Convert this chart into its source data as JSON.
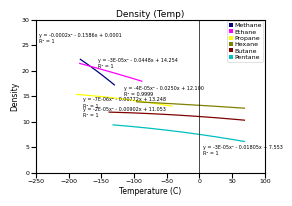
{
  "title": "Density (Temp)",
  "xlabel": "Temperature (C)",
  "ylabel": "Density",
  "xlim": [
    -250,
    100
  ],
  "ylim": [
    0,
    30
  ],
  "xticks": [
    -250,
    -200,
    -150,
    -100,
    -50,
    0,
    50,
    100
  ],
  "yticks": [
    0,
    5,
    10,
    15,
    20,
    25,
    30
  ],
  "lines": [
    {
      "name": "Methane",
      "color": "#000080",
      "x_range": [
        -182,
        -130
      ],
      "coeffs": [
        -0.0002,
        -0.1586,
        0.0001
      ],
      "eq_text": "y = -0.0002x² - 0.1586x + 0.0001",
      "r2_text": "R² = 1",
      "eq_x": -245,
      "eq_y": 27.5
    },
    {
      "name": "Ethane",
      "color": "#FF00FF",
      "x_range": [
        -183,
        -88
      ],
      "coeffs": [
        -3e-05,
        -0.0448,
        14.254
      ],
      "eq_text": "y = -3E-05x² - 0.0448x + 14.254",
      "r2_text": "R² = 1",
      "eq_x": -155,
      "eq_y": 22.5
    },
    {
      "name": "Propane",
      "color": "#FFFF00",
      "x_range": [
        -188,
        -42
      ],
      "coeffs": [
        -4e-05,
        -0.025,
        12.1
      ],
      "eq_text": "y = -4E-05x² - 0.0250x + 12.100",
      "r2_text": "R² = 0.9999",
      "eq_x": -115,
      "eq_y": 17.0
    },
    {
      "name": "Hexane",
      "color": "#808000",
      "x_range": [
        -96,
        69
      ],
      "coeffs": [
        -7e-06,
        -0.00772,
        13.248
      ],
      "eq_text": "y = -7E-06x² - 0.00772x + 13.248",
      "r2_text": "R² = 1",
      "eq_x": -178,
      "eq_y": 14.8
    },
    {
      "name": "Butane",
      "color": "#800000",
      "x_range": [
        -138,
        69
      ],
      "coeffs": [
        -2e-05,
        -0.00902,
        11.053
      ],
      "eq_text": "y = -2E-05x² - 0.00902x + 11.053",
      "r2_text": "R² = 1",
      "eq_x": -178,
      "eq_y": 13.0
    },
    {
      "name": "Pentane",
      "color": "#00BFBF",
      "x_range": [
        -132,
        69
      ],
      "coeffs": [
        -3e-05,
        -0.01805,
        7.553
      ],
      "eq_text": "y = -3E-05x² - 0.01805x + 7.553",
      "r2_text": "R² = 1",
      "eq_x": 5,
      "eq_y": 5.5
    }
  ],
  "pentane_eq_x": -100,
  "pentane_eq_y": 9.0,
  "bg_color": "#FFFFFF",
  "title_fontsize": 6.5,
  "label_fontsize": 5.5,
  "tick_fontsize": 4.5,
  "eq_fontsize": 3.5,
  "legend_fontsize": 4.5
}
